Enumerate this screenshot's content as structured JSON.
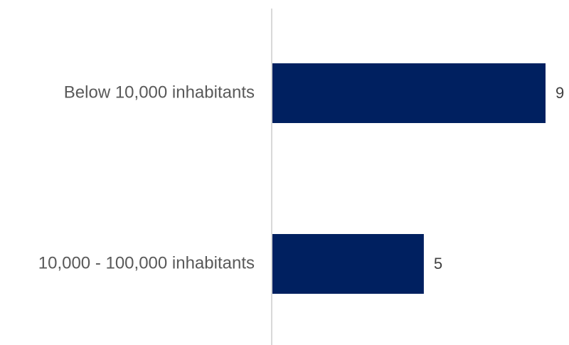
{
  "chart_data": {
    "type": "bar",
    "orientation": "horizontal",
    "title": "",
    "xlabel": "",
    "ylabel": "",
    "categories": [
      "Below 10,000 inhabitants",
      "10,000 - 100,000 inhabitants"
    ],
    "values": [
      9,
      5
    ],
    "xlim": [
      0,
      9
    ],
    "grid": false,
    "legend": "none",
    "data_labels": true,
    "colors": {
      "bar": "#002060",
      "axis": "#d9d9d9",
      "category_text": "#595959",
      "value_text": "#404040"
    }
  }
}
